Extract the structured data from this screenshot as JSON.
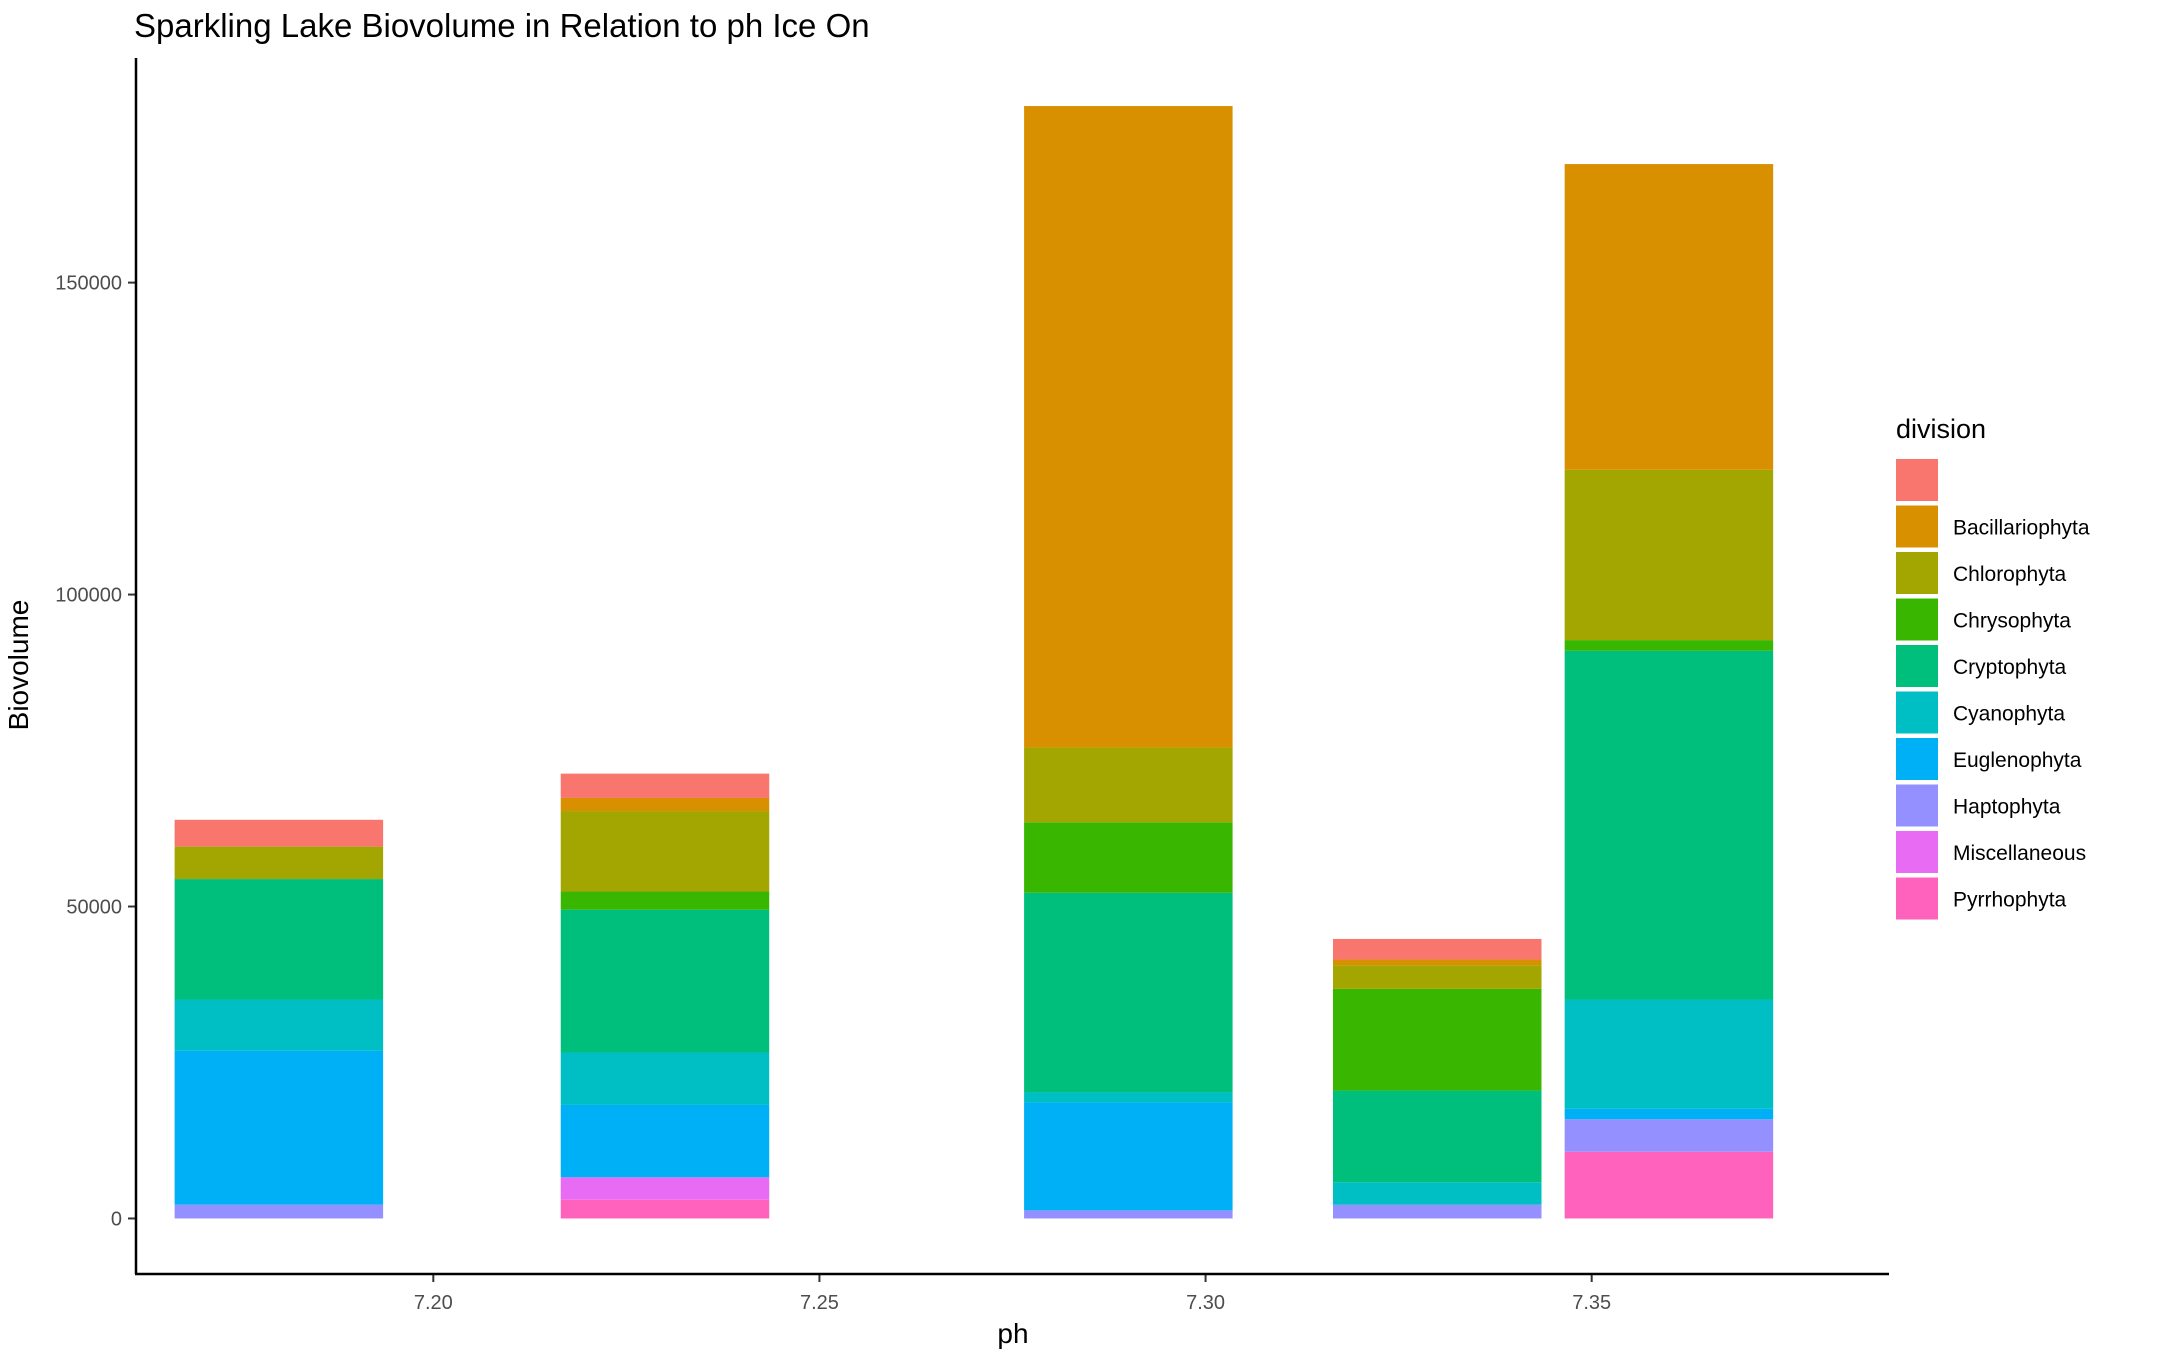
{
  "chart_data": {
    "type": "bar",
    "stacked": true,
    "title": "Sparkling Lake Biovolume in Relation to ph Ice On",
    "xlabel": "ph",
    "ylabel": "Biovolume",
    "xlim": [
      7.1615,
      7.3885
    ],
    "ylim": [
      -8900,
      186000
    ],
    "x_ticks": [
      7.2,
      7.25,
      7.3,
      7.35
    ],
    "x_tick_labels": [
      "7.20",
      "7.25",
      "7.30",
      "7.35"
    ],
    "y_ticks": [
      0,
      50000,
      100000,
      150000
    ],
    "y_tick_labels": [
      "0",
      "50000",
      "100000",
      "150000"
    ],
    "bar_width": 0.027,
    "grid": false,
    "legend_title": "division",
    "legend_position": "right",
    "categories": [
      7.18,
      7.23,
      7.29,
      7.33,
      7.36
    ],
    "series": [
      {
        "name": "",
        "color": "#F8766D",
        "values": [
          4300,
          3900,
          0,
          3300,
          0
        ]
      },
      {
        "name": "Bacillariophyta",
        "color": "#D89000",
        "values": [
          0,
          2100,
          102800,
          900,
          49000
        ]
      },
      {
        "name": "Chlorophyta",
        "color": "#A3A500",
        "values": [
          5200,
          12900,
          12000,
          3800,
          27300
        ]
      },
      {
        "name": "Chrysophyta",
        "color": "#39B600",
        "values": [
          0,
          2900,
          11300,
          16300,
          1700
        ]
      },
      {
        "name": "Cryptophyta",
        "color": "#00BF7D",
        "values": [
          19300,
          22900,
          32000,
          14700,
          55900
        ]
      },
      {
        "name": "Cyanophyta",
        "color": "#00BFC4",
        "values": [
          8200,
          8400,
          1600,
          3600,
          17500
        ]
      },
      {
        "name": "Euglenophyta",
        "color": "#00B0F6",
        "values": [
          24700,
          11600,
          17300,
          0,
          1700
        ]
      },
      {
        "name": "Haptophyta",
        "color": "#9590FF",
        "values": [
          2200,
          0,
          1300,
          2200,
          5200
        ]
      },
      {
        "name": "Miscellaneous",
        "color": "#E76BF3",
        "values": [
          0,
          3600,
          0,
          0,
          0
        ]
      },
      {
        "name": "Pyrrhophyta",
        "color": "#FF62BC",
        "values": [
          0,
          3000,
          0,
          0,
          10700
        ]
      }
    ]
  }
}
